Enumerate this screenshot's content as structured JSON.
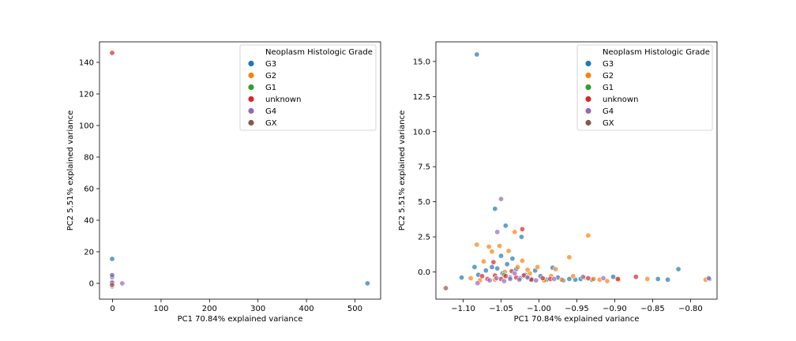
{
  "chart_data": [
    {
      "type": "scatter",
      "title": "",
      "xlabel": "PC1 70.84% explained variance",
      "ylabel": "PC2 5.51% explained variance",
      "xlim": [
        -27,
        553
      ],
      "ylim": [
        -10,
        153
      ],
      "xticks": [
        0,
        100,
        200,
        300,
        400,
        500
      ],
      "yticks": [
        0,
        20,
        40,
        60,
        80,
        100,
        120,
        140
      ],
      "legend": {
        "title": "Neoplasm Histologic Grade",
        "position": "top-right",
        "entries": [
          "G3",
          "G2",
          "G1",
          "unknown",
          "G4",
          "GX"
        ]
      },
      "series": [
        {
          "name": "G3",
          "color": "#1f77b4",
          "points": [
            [
              -1,
              15.5
            ],
            [
              -1,
              5
            ],
            [
              -1,
              4
            ],
            [
              -1,
              0.3
            ],
            [
              -1,
              -0.5
            ],
            [
              -1.1,
              0
            ],
            [
              526,
              0
            ]
          ]
        },
        {
          "name": "G2",
          "color": "#ff7f0e",
          "points": [
            [
              -1,
              -2
            ],
            [
              -1,
              -1
            ],
            [
              -1,
              0.5
            ],
            [
              -0.9,
              -0.5
            ],
            [
              -1,
              1
            ]
          ]
        },
        {
          "name": "G1",
          "color": "#2ca02c",
          "points": [
            [
              -1,
              -0.3
            ]
          ]
        },
        {
          "name": "unknown",
          "color": "#d62728",
          "points": [
            [
              -1,
              146
            ],
            [
              -1,
              0
            ],
            [
              -1.05,
              -0.5
            ],
            [
              -0.95,
              0.3
            ]
          ]
        },
        {
          "name": "G4",
          "color": "#9467bd",
          "points": [
            [
              -1,
              0.5
            ],
            [
              -1,
              5.2
            ],
            [
              20,
              0
            ]
          ]
        },
        {
          "name": "GX",
          "color": "#8c564b",
          "points": [
            [
              -1.1,
              -1
            ]
          ]
        }
      ]
    },
    {
      "type": "scatter",
      "title": "",
      "xlabel": "PC1 70.84% explained variance",
      "ylabel": "PC2 5.51% explained variance",
      "xlim": [
        -1.136,
        -0.765
      ],
      "ylim": [
        -1.94,
        16.4
      ],
      "xticks": [
        -1.1,
        -1.05,
        -1.0,
        -0.95,
        -0.9,
        -0.85,
        -0.8
      ],
      "xtick_labels": [
        "−1.10",
        "−1.05",
        "−1.00",
        "−0.95",
        "−0.90",
        "−0.85",
        "−0.80"
      ],
      "yticks": [
        0.0,
        2.5,
        5.0,
        7.5,
        10.0,
        12.5,
        15.0
      ],
      "ytick_labels": [
        "0.0",
        "2.5",
        "5.0",
        "7.5",
        "10.0",
        "12.5",
        "15.0"
      ],
      "legend": {
        "title": "Neoplasm Histologic Grade",
        "position": "top-right",
        "entries": [
          "G3",
          "G2",
          "G1",
          "unknown",
          "G4",
          "GX"
        ]
      },
      "series": [
        {
          "name": "G3",
          "color": "#1f77b4",
          "points": [
            [
              -1.082,
              15.5
            ],
            [
              -1.058,
              4.5
            ],
            [
              -1.044,
              3.3
            ],
            [
              -1.023,
              2.5
            ],
            [
              -1.05,
              1.15
            ],
            [
              -1.035,
              0.95
            ],
            [
              -1.102,
              -0.4
            ],
            [
              -1.085,
              0.35
            ],
            [
              -1.08,
              -0.2
            ],
            [
              -1.07,
              0.1
            ],
            [
              -1.062,
              0.35
            ],
            [
              -1.055,
              0.25
            ],
            [
              -1.048,
              -0.1
            ],
            [
              -1.042,
              0.55
            ],
            [
              -1.038,
              -0.4
            ],
            [
              -1.03,
              0.2
            ],
            [
              -1.025,
              -0.45
            ],
            [
              -1.018,
              -0.2
            ],
            [
              -1.01,
              -0.5
            ],
            [
              -1.005,
              0.1
            ],
            [
              -0.998,
              -0.3
            ],
            [
              -0.99,
              -0.55
            ],
            [
              -0.982,
              0.3
            ],
            [
              -0.975,
              -0.4
            ],
            [
              -0.968,
              -0.6
            ],
            [
              -0.96,
              -0.5
            ],
            [
              -0.952,
              -0.55
            ],
            [
              -0.945,
              -0.5
            ],
            [
              -0.93,
              -0.55
            ],
            [
              -0.902,
              -0.35
            ],
            [
              -0.843,
              -0.5
            ],
            [
              -0.83,
              -0.55
            ],
            [
              -0.816,
              0.2
            ],
            [
              -0.775,
              -0.5
            ]
          ]
        },
        {
          "name": "G2",
          "color": "#ff7f0e",
          "points": [
            [
              -1.082,
              1.95
            ],
            [
              -1.073,
              0.75
            ],
            [
              -1.066,
              1.8
            ],
            [
              -1.062,
              1.45
            ],
            [
              -1.052,
              1.85
            ],
            [
              -1.04,
              1.5
            ],
            [
              -1.032,
              2.85
            ],
            [
              -1.028,
              0.35
            ],
            [
              -1.022,
              0.8
            ],
            [
              -1.012,
              -0.1
            ],
            [
              -1.002,
              0.35
            ],
            [
              -0.993,
              -0.6
            ],
            [
              -0.984,
              -0.3
            ],
            [
              -0.978,
              0.2
            ],
            [
              -0.96,
              1.05
            ],
            [
              -0.955,
              -0.3
            ],
            [
              -0.935,
              2.6
            ],
            [
              -0.928,
              -0.5
            ],
            [
              -0.92,
              -0.55
            ],
            [
              -0.91,
              -0.65
            ],
            [
              -0.895,
              -0.55
            ],
            [
              -0.857,
              -0.5
            ],
            [
              -0.78,
              -0.55
            ],
            [
              -1.09,
              -0.45
            ],
            [
              -1.078,
              -0.6
            ],
            [
              -1.058,
              -0.55
            ],
            [
              -1.045,
              0.0
            ],
            [
              -1.015,
              0.15
            ],
            [
              -0.97,
              -0.55
            ],
            [
              -0.94,
              -0.4
            ]
          ]
        },
        {
          "name": "G1",
          "color": "#2ca02c",
          "points": [
            [
              -1.046,
              -0.2
            ],
            [
              -1.016,
              -0.35
            ]
          ]
        },
        {
          "name": "unknown",
          "color": "#d62728",
          "points": [
            [
              -1.022,
              3.05
            ],
            [
              -1.06,
              0.7
            ],
            [
              -1.075,
              -0.3
            ],
            [
              -1.068,
              -0.5
            ],
            [
              -1.058,
              -0.25
            ],
            [
              -1.05,
              -0.5
            ],
            [
              -1.044,
              -0.3
            ],
            [
              -1.036,
              0.05
            ],
            [
              -1.03,
              -0.4
            ],
            [
              -1.02,
              -0.25
            ],
            [
              -1.01,
              -0.55
            ],
            [
              -0.995,
              -0.45
            ],
            [
              -0.985,
              -0.5
            ],
            [
              -0.935,
              -0.45
            ],
            [
              -0.896,
              -0.5
            ],
            [
              -0.872,
              -0.35
            ]
          ]
        },
        {
          "name": "G4",
          "color": "#9467bd",
          "points": [
            [
              -1.05,
              5.2
            ],
            [
              -1.055,
              2.85
            ],
            [
              -1.081,
              -0.8
            ],
            [
              -1.065,
              -0.6
            ],
            [
              -1.056,
              -0.45
            ],
            [
              -1.046,
              -0.65
            ],
            [
              -1.038,
              -0.5
            ],
            [
              -1.032,
              -0.1
            ],
            [
              -1.026,
              -0.55
            ],
            [
              -1.015,
              -0.4
            ],
            [
              -1.004,
              -0.6
            ],
            [
              -0.98,
              -0.5
            ],
            [
              -0.942,
              -0.35
            ],
            [
              -0.915,
              -0.45
            ],
            [
              -0.776,
              -0.45
            ]
          ]
        },
        {
          "name": "GX",
          "color": "#8c564b",
          "points": [
            [
              -1.123,
              -1.15
            ]
          ]
        }
      ]
    }
  ]
}
